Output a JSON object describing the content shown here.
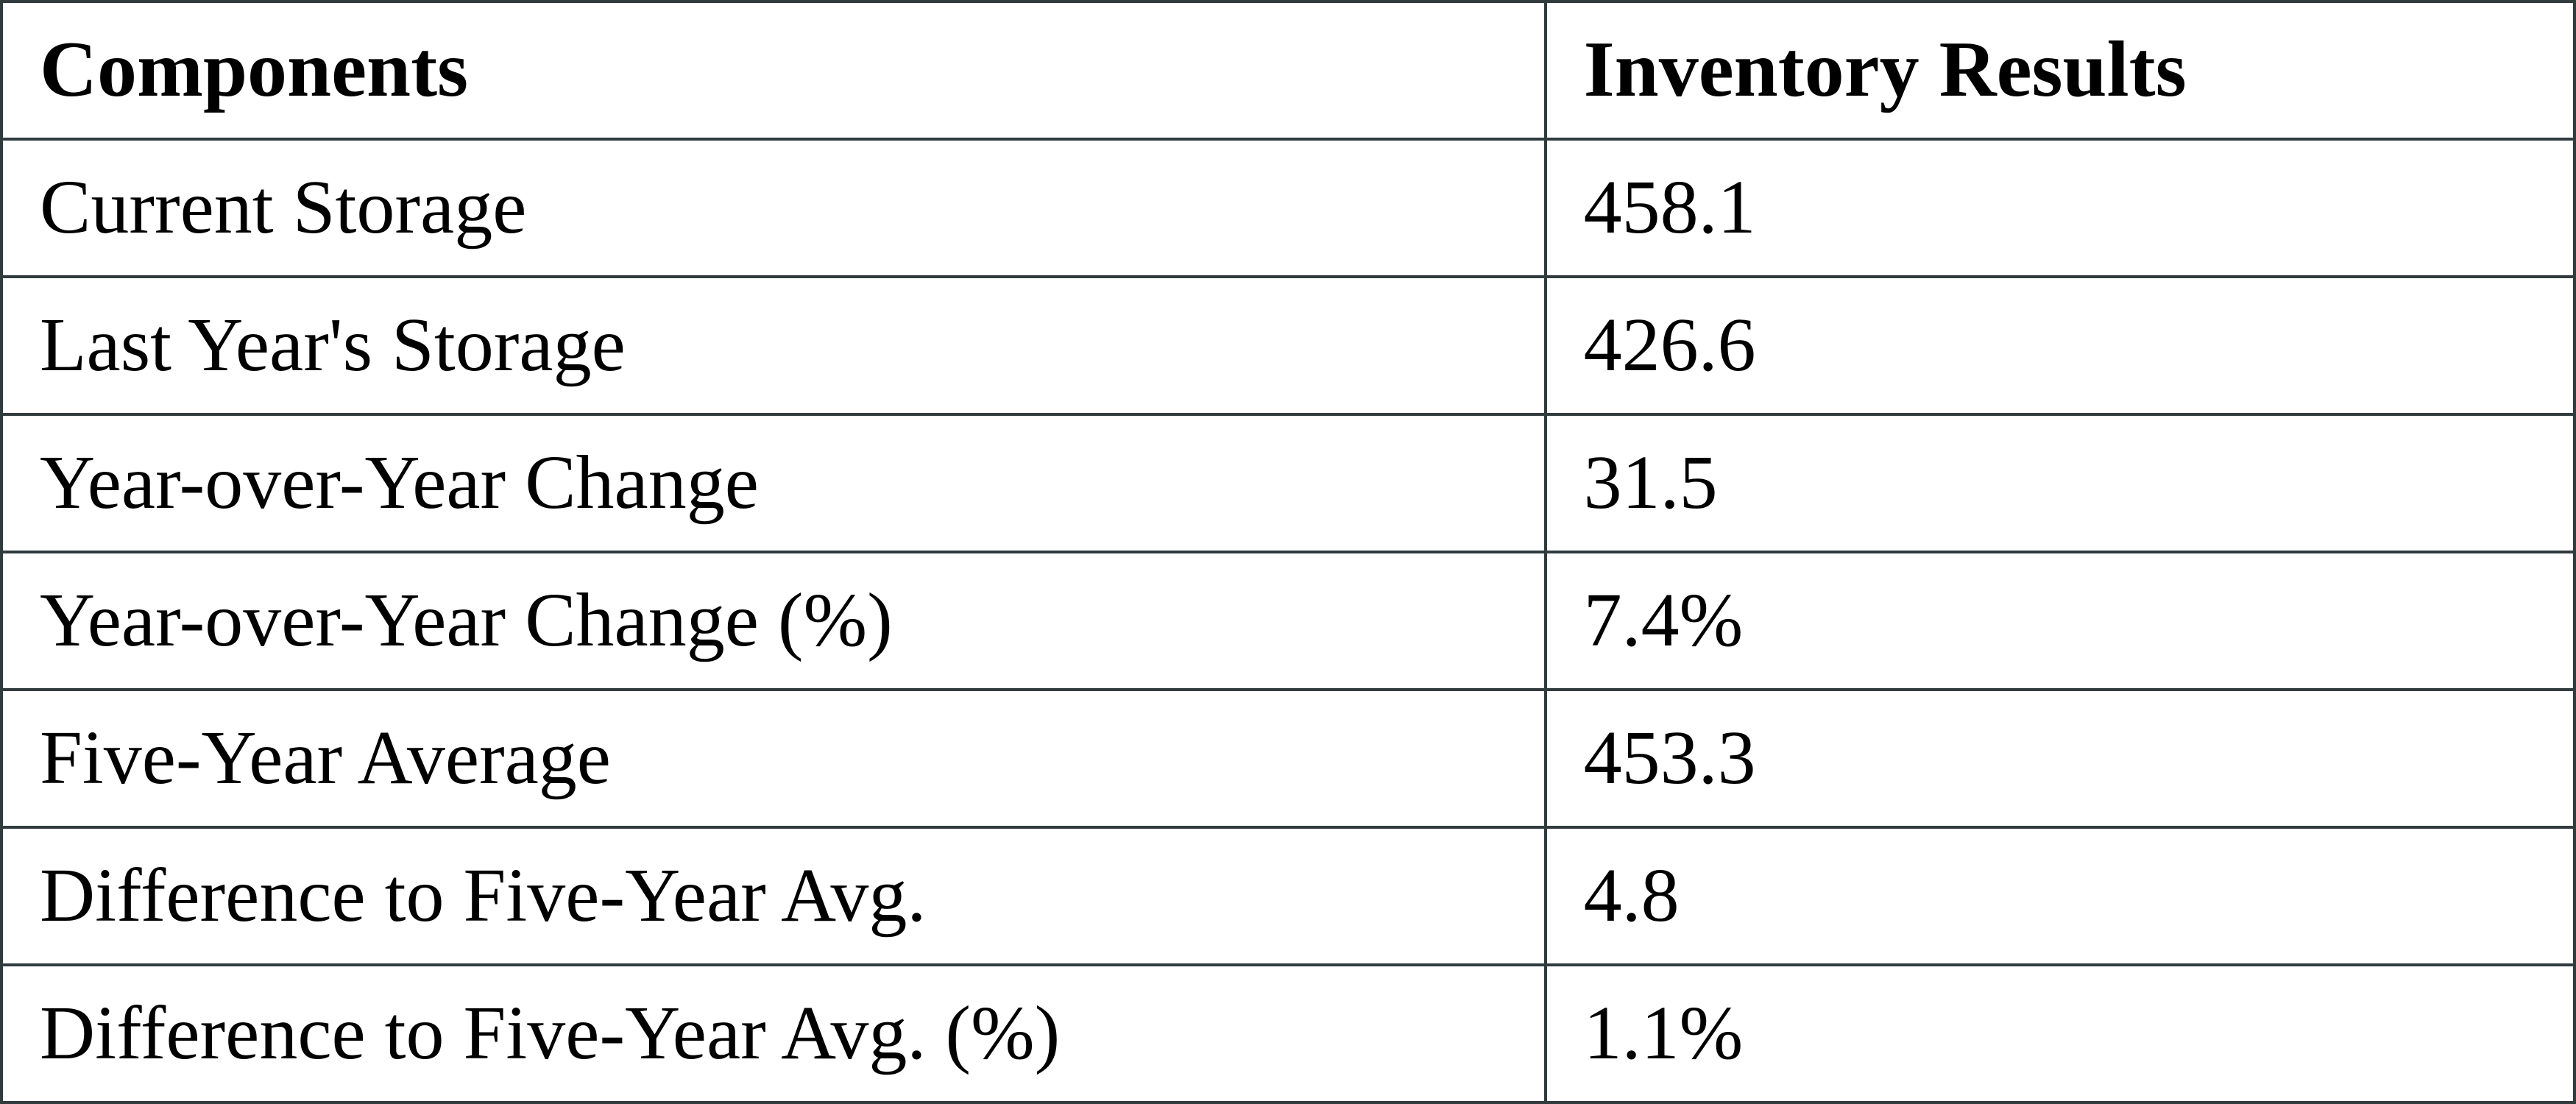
{
  "table": {
    "border_color": "#2f3b3d",
    "text_color": "#000000",
    "background_color": "#ffffff"
  },
  "chart_data": {
    "type": "table",
    "title": "",
    "columns": [
      "Components",
      "Inventory Results"
    ],
    "rows": [
      {
        "component": "Current Storage",
        "value": "458.1"
      },
      {
        "component": "Last Year's Storage",
        "value": "426.6"
      },
      {
        "component": "Year-over-Year Change",
        "value": "31.5"
      },
      {
        "component": "Year-over-Year Change (%)",
        "value": "7.4%"
      },
      {
        "component": "Five-Year Average",
        "value": "453.3"
      },
      {
        "component": "Difference to Five-Year Avg.",
        "value": "4.8"
      },
      {
        "component": "Difference to Five-Year Avg. (%)",
        "value": "1.1%"
      }
    ],
    "numeric_values": {
      "current_storage": 458.1,
      "last_year_storage": 426.6,
      "yoy_change": 31.5,
      "yoy_change_pct": 7.4,
      "five_year_average": 453.3,
      "diff_to_five_year_avg": 4.8,
      "diff_to_five_year_avg_pct": 1.1
    }
  }
}
